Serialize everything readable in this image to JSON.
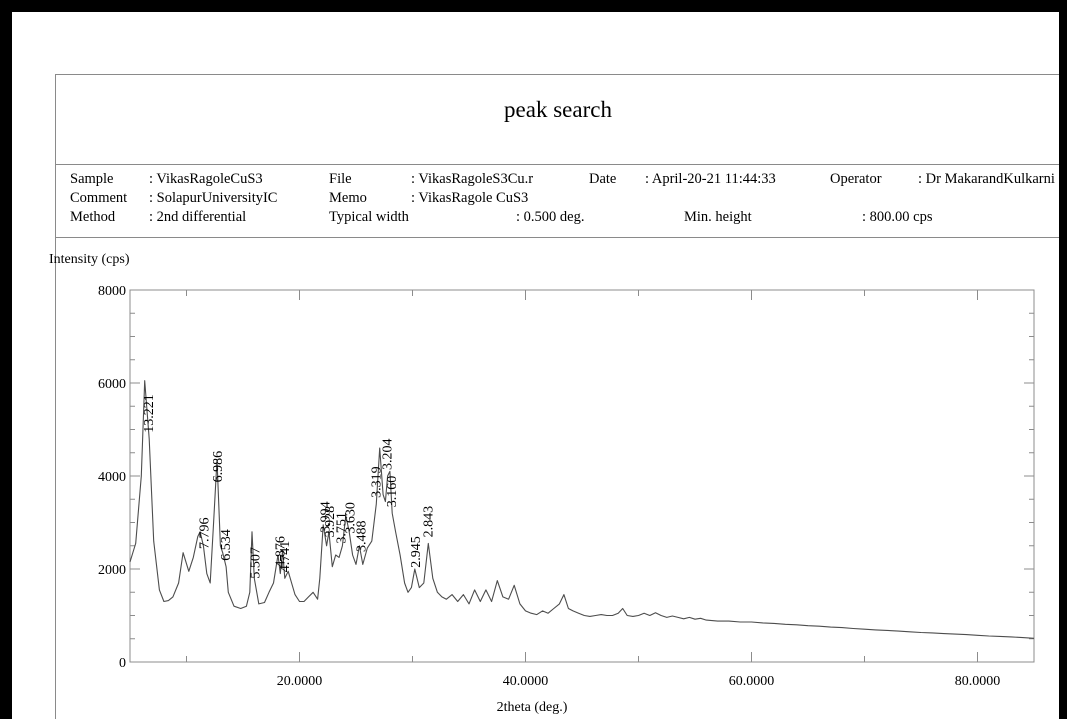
{
  "report": {
    "title": "peak search",
    "rows": [
      [
        {
          "label": "Sample",
          "value": ":  VikasRagoleCuS3"
        },
        {
          "label": "File",
          "value": ":  VikasRagoleS3Cu.r"
        },
        {
          "label": "Date",
          "value": ":  April-20-21     11:44:33"
        },
        {
          "label": "Operator",
          "value": ":  Dr  MakarandKulkarni"
        }
      ],
      [
        {
          "label": "Comment",
          "value": ":  SolapurUniversityIC"
        },
        {
          "label": "Memo",
          "value": ":  VikasRagole    CuS3"
        }
      ],
      [
        {
          "label": "Method",
          "value": ":  2nd  differential"
        },
        {
          "label": "Typical    width",
          "value": ":  0.500   deg."
        },
        {
          "label": "Min.   height",
          "value": ":  800.00   cps"
        }
      ]
    ]
  },
  "chart_data": {
    "type": "line",
    "title": "",
    "xlabel": "2theta (deg.)",
    "ylabel": "Intensity (cps)",
    "xlim": [
      5.0,
      85.0
    ],
    "ylim": [
      0,
      8000
    ],
    "xticks": [
      20,
      40,
      60,
      80
    ],
    "xtick_labels": [
      "20.0000",
      "40.0000",
      "60.0000",
      "80.0000"
    ],
    "yticks": [
      0,
      2000,
      4000,
      6000,
      8000
    ],
    "ytick_labels": [
      "0",
      "2000",
      "4000",
      "6000",
      "8000"
    ],
    "grid": false,
    "color": "#4d4d4d",
    "series": [
      {
        "x": [
          5.0,
          5.5,
          6.0,
          6.3,
          6.7,
          7.1,
          7.6,
          8.0,
          8.4,
          8.8,
          9.3,
          9.7,
          10.2,
          10.6,
          11.0,
          11.2,
          11.5,
          11.8,
          12.1,
          12.4,
          12.7,
          13.0,
          13.2,
          13.5,
          13.7,
          14.2,
          14.8,
          15.3,
          15.6,
          15.8,
          16.0,
          16.4,
          16.9,
          17.3,
          17.7,
          18.1,
          18.3,
          18.5,
          18.7,
          19.0,
          19.3,
          19.6,
          20.0,
          20.4,
          20.8,
          21.2,
          21.6,
          21.8,
          22.1,
          22.4,
          22.6,
          22.9,
          23.2,
          23.5,
          23.8,
          24.1,
          24.4,
          24.7,
          25.0,
          25.3,
          25.6,
          26.0,
          26.4,
          26.8,
          27.1,
          27.4,
          27.6,
          27.8,
          28.0,
          28.2,
          28.5,
          28.9,
          29.3,
          29.6,
          29.9,
          30.2,
          30.6,
          31.0,
          31.4,
          31.8,
          32.2,
          32.6,
          33.0,
          33.5,
          34.0,
          34.5,
          35.0,
          35.5,
          36.0,
          36.5,
          37.0,
          37.5,
          38.0,
          38.5,
          39.0,
          39.5,
          40.0,
          40.5,
          41.0,
          41.5,
          42.0,
          42.5,
          43.0,
          43.4,
          43.8,
          44.2,
          44.7,
          45.2,
          45.7,
          46.2,
          46.7,
          47.2,
          47.7,
          48.2,
          48.6,
          49.0,
          49.5,
          50.0,
          50.5,
          51.0,
          51.5,
          52.0,
          52.5,
          53.0,
          53.5,
          54.0,
          54.5,
          55.0,
          55.5,
          56.0,
          57.0,
          58.0,
          59.0,
          60.0,
          61.0,
          62.0,
          63.0,
          64.0,
          65.0,
          66.0,
          67.0,
          68.0,
          69.0,
          70.0,
          71.0,
          72.0,
          73.0,
          74.0,
          75.0,
          76.0,
          77.0,
          78.0,
          79.0,
          80.0,
          81.0,
          82.0,
          83.0,
          84.0,
          85.0
        ],
        "y": [
          2150,
          2550,
          4000,
          6050,
          4800,
          2600,
          1550,
          1300,
          1320,
          1400,
          1700,
          2350,
          1950,
          2250,
          2700,
          2800,
          2500,
          1900,
          1700,
          3000,
          4350,
          2500,
          2350,
          2050,
          1500,
          1200,
          1150,
          1200,
          1500,
          2800,
          1800,
          1250,
          1280,
          1500,
          1700,
          2300,
          1900,
          2400,
          1800,
          1950,
          1700,
          1450,
          1300,
          1300,
          1400,
          1500,
          1350,
          1800,
          2950,
          2500,
          2800,
          2050,
          2300,
          2250,
          2500,
          3150,
          2800,
          2300,
          2100,
          2500,
          2100,
          2450,
          2600,
          3400,
          4600,
          3600,
          3450,
          4000,
          4100,
          3200,
          2800,
          2300,
          1700,
          1500,
          1600,
          2000,
          1600,
          1700,
          2550,
          1800,
          1500,
          1400,
          1350,
          1450,
          1300,
          1450,
          1250,
          1550,
          1300,
          1550,
          1300,
          1750,
          1400,
          1350,
          1650,
          1250,
          1100,
          1050,
          1020,
          1100,
          1050,
          1150,
          1250,
          1450,
          1150,
          1100,
          1050,
          1000,
          980,
          1000,
          1020,
          1000,
          1000,
          1050,
          1150,
          1000,
          980,
          1000,
          1050,
          1000,
          1060,
          1000,
          960,
          990,
          960,
          930,
          960,
          920,
          940,
          900,
          880,
          880,
          860,
          860,
          840,
          830,
          810,
          800,
          780,
          770,
          750,
          740,
          720,
          705,
          690,
          680,
          665,
          650,
          635,
          625,
          610,
          600,
          590,
          575,
          560,
          550,
          540,
          525,
          510
        ]
      }
    ],
    "peak_labels": [
      {
        "text": "13.221",
        "x": 6.7
      },
      {
        "text": "7.796",
        "x": 11.6
      },
      {
        "text": "6.986",
        "x": 12.8
      },
      {
        "text": "6.534",
        "x": 13.5
      },
      {
        "text": "5.507",
        "x": 16.1
      },
      {
        "text": "4.876",
        "x": 18.3
      },
      {
        "text": "4.741",
        "x": 18.7
      },
      {
        "text": "3.994",
        "x": 22.3
      },
      {
        "text": "3.928",
        "x": 22.7
      },
      {
        "text": "3.751",
        "x": 23.7
      },
      {
        "text": "3.630",
        "x": 24.5
      },
      {
        "text": "3.488",
        "x": 25.5
      },
      {
        "text": "3.319",
        "x": 26.8
      },
      {
        "text": "3.204",
        "x": 27.8
      },
      {
        "text": "3.160",
        "x": 28.2
      },
      {
        "text": "2.945",
        "x": 30.3
      },
      {
        "text": "2.843",
        "x": 31.4
      }
    ]
  }
}
